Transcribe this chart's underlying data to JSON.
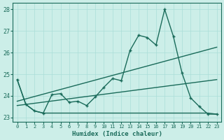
{
  "xlabel": "Humidex (Indice chaleur)",
  "bg_color": "#cceee8",
  "grid_color": "#aaddd8",
  "line_color": "#1a6b5a",
  "xlim": [
    -0.5,
    23.5
  ],
  "ylim": [
    22.8,
    28.3
  ],
  "yticks": [
    23,
    24,
    25,
    26,
    27,
    28
  ],
  "xticks": [
    0,
    1,
    2,
    3,
    4,
    5,
    6,
    7,
    8,
    9,
    10,
    11,
    12,
    13,
    14,
    15,
    16,
    17,
    18,
    19,
    20,
    21,
    22,
    23
  ],
  "series_main_x": [
    0,
    1,
    2,
    3,
    4,
    5,
    6,
    7,
    8,
    9,
    10,
    11,
    12,
    13,
    14,
    15,
    16,
    17,
    18,
    19,
    20,
    21,
    22,
    23
  ],
  "series_main_y": [
    24.75,
    23.6,
    23.3,
    23.2,
    24.05,
    24.1,
    23.7,
    23.75,
    23.55,
    23.95,
    24.4,
    24.8,
    24.7,
    26.1,
    26.8,
    26.7,
    26.35,
    28.0,
    26.75,
    25.05,
    23.9,
    23.5,
    23.15,
    23.15
  ],
  "series_flat_x": [
    0,
    1,
    2,
    3,
    18,
    19,
    20,
    21,
    22,
    23
  ],
  "series_flat_y": [
    24.75,
    23.6,
    23.3,
    23.2,
    23.2,
    23.2,
    23.2,
    23.2,
    23.2,
    23.15
  ],
  "series_trend1_x": [
    0,
    23
  ],
  "series_trend1_y": [
    23.75,
    26.25
  ],
  "series_trend2_x": [
    0,
    23
  ],
  "series_trend2_y": [
    23.55,
    24.75
  ]
}
